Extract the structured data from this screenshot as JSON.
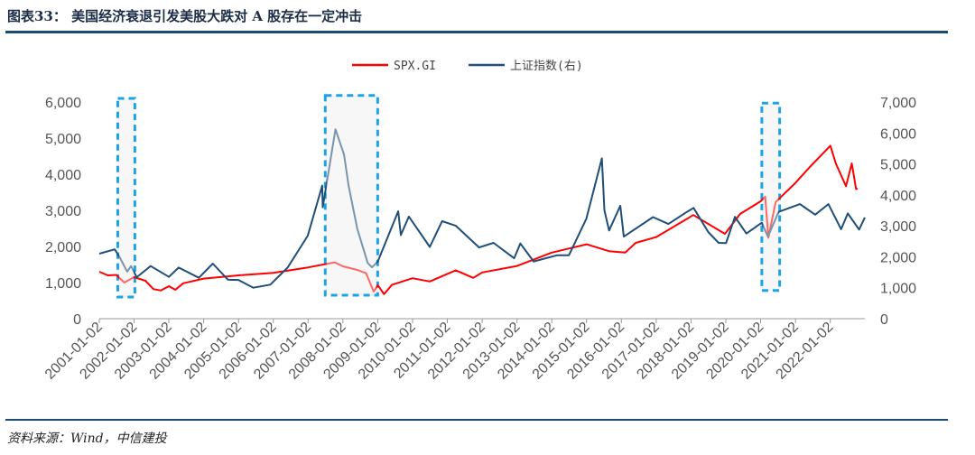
{
  "header": {
    "title": "图表33： 美国经济衰退引发美股大跌对 A 股存在一定冲击"
  },
  "footer": {
    "source": "资料来源：Wind，中信建投"
  },
  "chart_data": {
    "type": "line",
    "legend_position": "top-center",
    "grid": false,
    "x_tick_labels": [
      "2001-01-02",
      "2002-01-02",
      "2003-01-02",
      "2004-01-02",
      "2005-01-02",
      "2006-01-02",
      "2007-01-02",
      "2008-01-02",
      "2009-01-02",
      "2010-01-02",
      "2011-01-02",
      "2012-01-02",
      "2013-01-02",
      "2014-01-02",
      "2015-01-02",
      "2016-01-02",
      "2017-01-02",
      "2018-01-02",
      "2019-01-02",
      "2020-01-02",
      "2021-01-02",
      "2022-01-02"
    ],
    "xlim": [
      "2001-01-02",
      "2022-12-31"
    ],
    "y_left": {
      "ylim": [
        0,
        6000
      ],
      "ticks": [
        "0",
        "1,000",
        "2,000",
        "3,000",
        "4,000",
        "5,000",
        "6,000"
      ]
    },
    "y_right": {
      "ylim": [
        0,
        7000
      ],
      "ticks": [
        "0",
        "1,000",
        "2,000",
        "3,000",
        "4,000",
        "5,000",
        "6,000",
        "7,000"
      ]
    },
    "highlight_periods": [
      {
        "start": "2001-07-15",
        "end": "2002-01-10",
        "ymin": 600,
        "ymax": 6100
      },
      {
        "start": "2007-07-01",
        "end": "2009-01-01",
        "ymin": 650,
        "ymax": 6180
      },
      {
        "start": "2020-01-15",
        "end": "2020-07-20",
        "ymin": 780,
        "ymax": 5970
      }
    ],
    "series": [
      {
        "name": "SPX.GI",
        "axis": "left",
        "color": "#ff0000",
        "points": [
          [
            "2001-01-02",
            1300
          ],
          [
            "2001-04-01",
            1200
          ],
          [
            "2001-07-01",
            1210
          ],
          [
            "2001-09-21",
            1000
          ],
          [
            "2002-01-02",
            1150
          ],
          [
            "2002-05-01",
            1050
          ],
          [
            "2002-07-23",
            820
          ],
          [
            "2002-10-09",
            780
          ],
          [
            "2003-01-02",
            900
          ],
          [
            "2003-03-11",
            800
          ],
          [
            "2003-06-01",
            980
          ],
          [
            "2004-01-02",
            1110
          ],
          [
            "2005-01-02",
            1200
          ],
          [
            "2006-01-02",
            1270
          ],
          [
            "2007-01-02",
            1420
          ],
          [
            "2007-10-09",
            1560
          ],
          [
            "2008-01-02",
            1450
          ],
          [
            "2008-06-01",
            1350
          ],
          [
            "2008-09-01",
            1260
          ],
          [
            "2008-11-20",
            750
          ],
          [
            "2009-01-02",
            930
          ],
          [
            "2009-03-09",
            680
          ],
          [
            "2009-06-01",
            940
          ],
          [
            "2010-01-02",
            1120
          ],
          [
            "2010-07-01",
            1030
          ],
          [
            "2011-04-01",
            1340
          ],
          [
            "2011-10-01",
            1130
          ],
          [
            "2012-01-02",
            1280
          ],
          [
            "2013-01-02",
            1460
          ],
          [
            "2014-01-02",
            1830
          ],
          [
            "2015-01-02",
            2060
          ],
          [
            "2015-08-25",
            1870
          ],
          [
            "2016-02-11",
            1830
          ],
          [
            "2016-06-01",
            2100
          ],
          [
            "2017-01-02",
            2260
          ],
          [
            "2018-01-26",
            2870
          ],
          [
            "2018-12-24",
            2350
          ],
          [
            "2019-06-01",
            2900
          ],
          [
            "2020-01-02",
            3250
          ],
          [
            "2020-02-19",
            3380
          ],
          [
            "2020-03-23",
            2240
          ],
          [
            "2020-06-08",
            3230
          ],
          [
            "2021-01-02",
            3760
          ],
          [
            "2021-06-01",
            4200
          ],
          [
            "2022-01-03",
            4790
          ],
          [
            "2022-03-01",
            4300
          ],
          [
            "2022-06-16",
            3670
          ],
          [
            "2022-08-16",
            4300
          ],
          [
            "2022-09-30",
            3590
          ],
          [
            "2022-10-15",
            3600
          ]
        ]
      },
      {
        "name": "上证指数(右)",
        "axis": "right",
        "color": "#1f4e79",
        "points": [
          [
            "2001-01-02",
            2100
          ],
          [
            "2001-06-13",
            2240
          ],
          [
            "2001-08-01",
            2000
          ],
          [
            "2001-10-22",
            1520
          ],
          [
            "2001-12-01",
            1700
          ],
          [
            "2002-01-29",
            1340
          ],
          [
            "2002-06-25",
            1700
          ],
          [
            "2003-01-02",
            1350
          ],
          [
            "2003-04-15",
            1650
          ],
          [
            "2003-11-13",
            1320
          ],
          [
            "2004-04-07",
            1780
          ],
          [
            "2004-09-13",
            1260
          ],
          [
            "2005-01-02",
            1250
          ],
          [
            "2005-06-06",
            1000
          ],
          [
            "2005-12-01",
            1100
          ],
          [
            "2006-06-01",
            1650
          ],
          [
            "2006-12-29",
            2680
          ],
          [
            "2007-05-30",
            4300
          ],
          [
            "2007-06-05",
            3600
          ],
          [
            "2007-10-16",
            6120
          ],
          [
            "2008-01-14",
            5300
          ],
          [
            "2008-03-01",
            4300
          ],
          [
            "2008-06-01",
            2900
          ],
          [
            "2008-09-18",
            1800
          ],
          [
            "2008-11-04",
            1660
          ],
          [
            "2009-01-02",
            1850
          ],
          [
            "2009-08-04",
            3470
          ],
          [
            "2009-09-01",
            2700
          ],
          [
            "2009-11-24",
            3300
          ],
          [
            "2010-07-02",
            2320
          ],
          [
            "2010-11-08",
            3150
          ],
          [
            "2011-04-01",
            3000
          ],
          [
            "2011-12-01",
            2300
          ],
          [
            "2012-05-01",
            2450
          ],
          [
            "2012-12-03",
            1950
          ],
          [
            "2013-02-06",
            2430
          ],
          [
            "2013-06-25",
            1850
          ],
          [
            "2014-03-01",
            2050
          ],
          [
            "2014-07-01",
            2050
          ],
          [
            "2014-12-31",
            3230
          ],
          [
            "2015-06-12",
            5180
          ],
          [
            "2015-07-08",
            3500
          ],
          [
            "2015-08-26",
            2850
          ],
          [
            "2015-12-22",
            3650
          ],
          [
            "2016-01-28",
            2650
          ],
          [
            "2016-11-29",
            3280
          ],
          [
            "2017-05-10",
            3060
          ],
          [
            "2017-11-14",
            3440
          ],
          [
            "2018-01-29",
            3580
          ],
          [
            "2018-07-01",
            2800
          ],
          [
            "2018-10-18",
            2450
          ],
          [
            "2019-01-04",
            2440
          ],
          [
            "2019-04-08",
            3290
          ],
          [
            "2019-08-06",
            2750
          ],
          [
            "2020-01-14",
            3100
          ],
          [
            "2020-03-19",
            2650
          ],
          [
            "2020-07-09",
            3450
          ],
          [
            "2021-02-18",
            3700
          ],
          [
            "2021-07-28",
            3360
          ],
          [
            "2021-12-13",
            3700
          ],
          [
            "2022-04-26",
            2890
          ],
          [
            "2022-07-05",
            3400
          ],
          [
            "2022-09-30",
            3020
          ],
          [
            "2022-10-31",
            2880
          ],
          [
            "2022-12-31",
            3270
          ]
        ]
      }
    ]
  }
}
